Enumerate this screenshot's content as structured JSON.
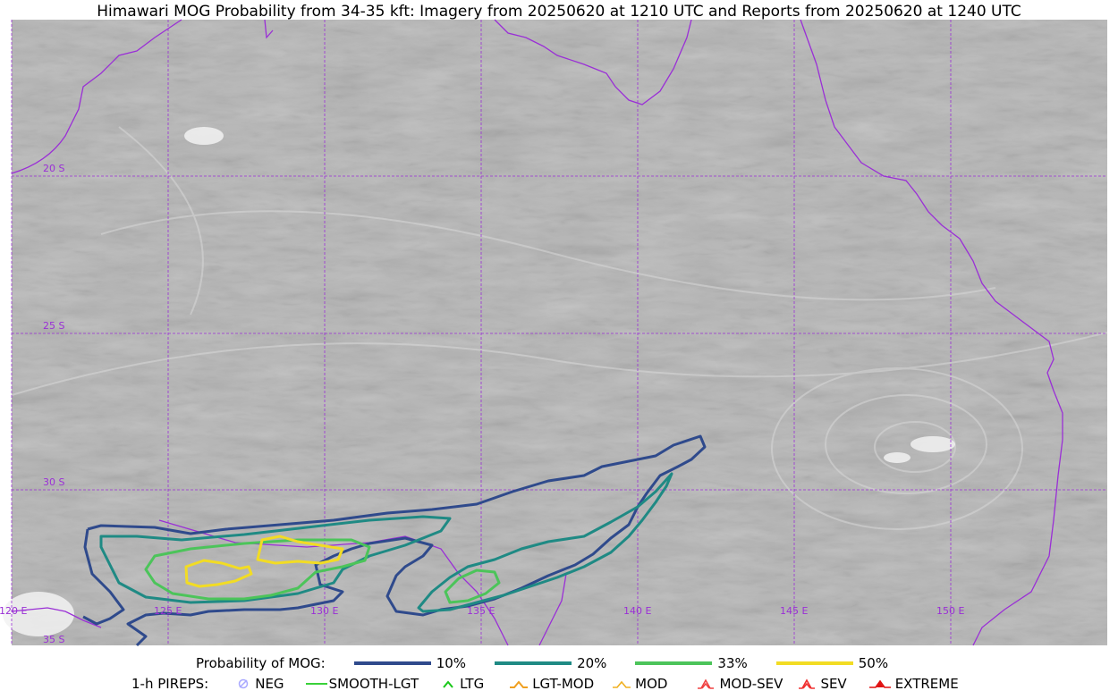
{
  "title": "Himawari MOG Probability from 34-35 kft: Imagery from 20250620 at 1210 UTC and Reports from 20250620 at 1240 UTC",
  "colors": {
    "background_imagery": "#b9b9b9",
    "grid_and_coast": "#9a2fd6",
    "prob_10": "#2f4a8c",
    "prob_20": "#1f8a84",
    "prob_33": "#4cc45a",
    "prob_50": "#f2dc24"
  },
  "map": {
    "lat_labels": [
      "20 S",
      "25 S",
      "30 S",
      "35 S"
    ],
    "lon_labels": [
      "120 E",
      "125 E",
      "130 E",
      "135 E",
      "140 E",
      "145 E",
      "150 E"
    ]
  },
  "legend": {
    "probability_title": "Probability of MOG:",
    "probabilities": [
      {
        "label": "10%",
        "color": "#2f4a8c"
      },
      {
        "label": "20%",
        "color": "#1f8a84"
      },
      {
        "label": "33%",
        "color": "#4cc45a"
      },
      {
        "label": "50%",
        "color": "#f2dc24"
      }
    ],
    "pirep_title": "1-h PIREPS:",
    "pireps": [
      {
        "label": "NEG",
        "icon": "neg-icon",
        "color": "#a9a9ff"
      },
      {
        "label": "SMOOTH-LGT",
        "icon": "smooth-lgt-line-icon",
        "color": "#39d139"
      },
      {
        "label": "LTG",
        "icon": "ltg-chevron-icon",
        "color": "#18c818"
      },
      {
        "label": "LGT-MOD",
        "icon": "lgt-mod-chevron-icon",
        "color": "#f0a020"
      },
      {
        "label": "MOD",
        "icon": "mod-chevron-icon",
        "color": "#f0b020"
      },
      {
        "label": "MOD-SEV",
        "icon": "mod-sev-chevron-icon",
        "color": "#f04040"
      },
      {
        "label": "SEV",
        "icon": "sev-chevron-icon",
        "color": "#f03030"
      },
      {
        "label": "EXTREME",
        "icon": "extreme-chevron-icon",
        "color": "#e01010"
      }
    ]
  }
}
